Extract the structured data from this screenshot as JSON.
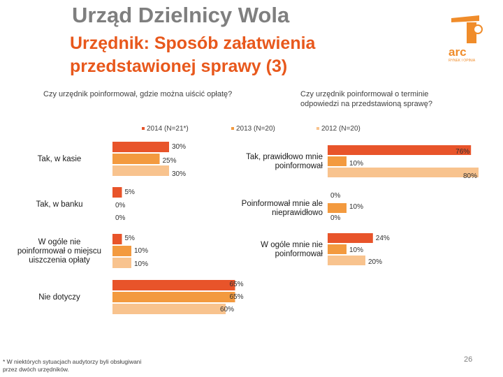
{
  "header": {
    "title": "Urząd Dzielnicy Wola",
    "subtitle": "Urzędnik: Sposób załatwienia przedstawionej sprawy (3)"
  },
  "colors": {
    "s2014": "#e8542a",
    "s2013": "#f39a3f",
    "s2012": "#f8c38e",
    "logo": "#f08c2a"
  },
  "logo": {
    "text": "arc",
    "tagline": "RYNEK I OPINIA"
  },
  "legend": [
    {
      "label": "2014 (N=21*)"
    },
    {
      "label": "2013 (N=20)"
    },
    {
      "label": "2012 (N=20)"
    }
  ],
  "chart_data": [
    {
      "type": "bar",
      "orientation": "horizontal",
      "title": "Czy urzędnik poinformował, gdzie można uiścić opłatę?",
      "categories": [
        "Tak, w kasie",
        "Tak, w banku",
        "W ogóle nie poinformował o miejscu uiszczenia opłaty",
        "Nie dotyczy"
      ],
      "series": [
        {
          "name": "2014 (N=21*)",
          "values": [
            30,
            5,
            5,
            65
          ]
        },
        {
          "name": "2013 (N=20)",
          "values": [
            25,
            0,
            10,
            65
          ]
        },
        {
          "name": "2012 (N=20)",
          "values": [
            30,
            0,
            10,
            60
          ]
        }
      ],
      "value_suffix": "%",
      "xlim": [
        0,
        100
      ]
    },
    {
      "type": "bar",
      "orientation": "horizontal",
      "title": "Czy urzędnik poinformował o terminie odpowiedzi na przedstawioną sprawę?",
      "categories": [
        "Tak, prawidłowo mnie poinformował",
        "Poinformował mnie ale nieprawidłowo",
        "W ogóle mnie nie poinformował"
      ],
      "series": [
        {
          "name": "2014 (N=21*)",
          "values": [
            76,
            0,
            24
          ]
        },
        {
          "name": "2013 (N=20)",
          "values": [
            10,
            10,
            10
          ]
        },
        {
          "name": "2012 (N=20)",
          "values": [
            80,
            0,
            20
          ]
        }
      ],
      "value_suffix": "%",
      "xlim": [
        0,
        100
      ]
    }
  ],
  "footnote": "* W niektórych sytuacjach audytorzy byli obsługiwani przez dwóch urzędników.",
  "page_number": "26"
}
